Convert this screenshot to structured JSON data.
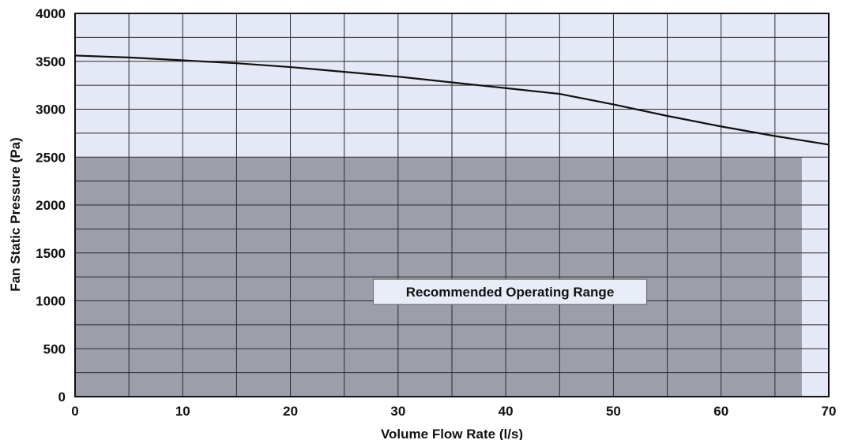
{
  "chart_data": {
    "type": "line",
    "title": "",
    "xlabel": "Volume Flow Rate (l/s)",
    "ylabel": "Fan Static Pressure (Pa)",
    "xlim": [
      0,
      70
    ],
    "ylim": [
      0,
      4000
    ],
    "x_ticks": [
      0,
      10,
      20,
      30,
      40,
      50,
      60,
      70
    ],
    "y_ticks": [
      0,
      500,
      1000,
      1500,
      2000,
      2500,
      3000,
      3500,
      4000
    ],
    "grid": true,
    "series": [
      {
        "name": "",
        "x": [
          0,
          5,
          10,
          15,
          20,
          25,
          30,
          35,
          40,
          45,
          50,
          55,
          60,
          65,
          70
        ],
        "y": [
          3560,
          3540,
          3510,
          3480,
          3440,
          3390,
          3340,
          3280,
          3220,
          3160,
          3050,
          2930,
          2820,
          2720,
          2630
        ]
      }
    ],
    "shaded_region": {
      "label": "Recommended Operating Range",
      "x": [
        0,
        67.5
      ],
      "y": [
        0,
        2500
      ]
    },
    "colors": {
      "plot_background": "#e4e9f5",
      "grid": "#2a2a2a",
      "shaded_region": "#9c9fa9",
      "line": "#111111",
      "annotation_box": "#e8ecf6"
    }
  }
}
